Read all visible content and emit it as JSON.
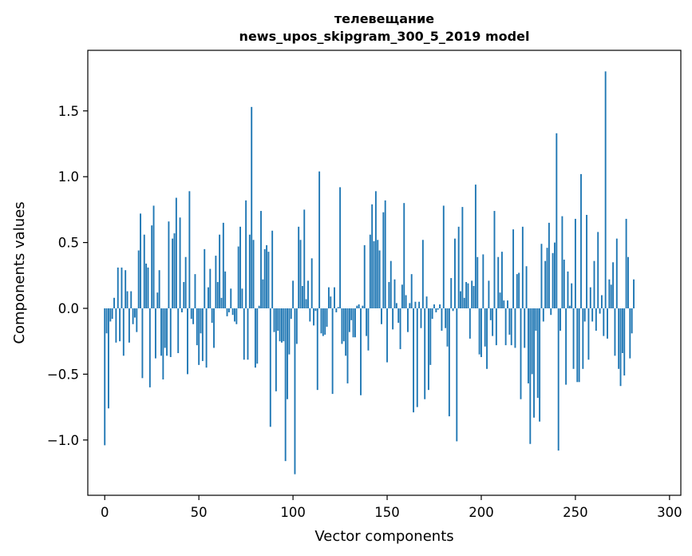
{
  "chart_data": {
    "type": "bar",
    "title": "телевещание",
    "subtitle": "news_upos_skipgram_300_5_2019 model",
    "xlabel": "Vector components",
    "ylabel": "Components values",
    "xlim": [
      -9,
      306
    ],
    "ylim": [
      -1.42,
      1.96
    ],
    "x_ticks": [
      0,
      50,
      100,
      150,
      200,
      250,
      300
    ],
    "x_tick_labels": [
      "0",
      "50",
      "100",
      "150",
      "200",
      "250",
      "300"
    ],
    "y_ticks": [
      -1.0,
      -0.5,
      0.0,
      0.5,
      1.0,
      1.5
    ],
    "y_tick_labels": [
      "−1.0",
      "−0.5",
      "0.0",
      "0.5",
      "1.0",
      "1.5"
    ],
    "grid": false,
    "bar_color": "#1f77b4",
    "values": [
      -1.04,
      -0.19,
      -0.76,
      -0.1,
      -0.08,
      0.08,
      -0.26,
      0.31,
      -0.25,
      0.31,
      -0.36,
      0.29,
      0.13,
      -0.26,
      0.13,
      -0.12,
      -0.07,
      -0.18,
      0.44,
      0.72,
      -0.53,
      0.56,
      0.34,
      0.31,
      -0.6,
      0.63,
      0.78,
      -0.38,
      0.12,
      0.29,
      -0.36,
      -0.54,
      -0.3,
      -0.36,
      0.66,
      -0.37,
      0.53,
      0.57,
      0.84,
      -0.34,
      0.69,
      -0.03,
      0.2,
      0.39,
      -0.5,
      0.89,
      -0.08,
      -0.12,
      0.26,
      -0.28,
      -0.43,
      -0.19,
      -0.4,
      0.45,
      -0.45,
      0.16,
      0.3,
      -0.11,
      -0.3,
      0.4,
      0.2,
      0.56,
      0.08,
      0.65,
      0.28,
      -0.06,
      -0.03,
      0.15,
      -0.05,
      -0.1,
      -0.12,
      0.47,
      0.62,
      0.15,
      -0.39,
      0.82,
      -0.39,
      0.56,
      1.53,
      0.52,
      -0.45,
      -0.42,
      0.02,
      0.74,
      0.22,
      0.45,
      0.48,
      0.43,
      -0.9,
      0.59,
      -0.18,
      -0.63,
      -0.17,
      -0.25,
      -0.26,
      -0.25,
      -1.16,
      -0.69,
      -0.35,
      -0.08,
      0.21,
      -1.26,
      -0.27,
      0.62,
      0.52,
      0.17,
      0.75,
      0.07,
      0.21,
      -0.1,
      0.38,
      -0.13,
      -0.02,
      -0.62,
      1.04,
      -0.19,
      -0.21,
      -0.2,
      -0.14,
      0.16,
      0.09,
      -0.65,
      0.16,
      -0.03,
      0.01,
      0.92,
      -0.27,
      -0.25,
      -0.36,
      -0.57,
      -0.18,
      -0.09,
      -0.22,
      -0.22,
      0.02,
      0.03,
      -0.66,
      0.02,
      0.48,
      -0.21,
      -0.32,
      0.56,
      0.79,
      0.51,
      0.89,
      0.52,
      0.44,
      -0.12,
      0.73,
      0.82,
      -0.41,
      0.2,
      0.36,
      -0.16,
      0.22,
      0.04,
      -0.11,
      -0.31,
      0.18,
      0.8,
      0.1,
      -0.18,
      0.04,
      0.26,
      -0.79,
      0.05,
      -0.75,
      0.05,
      -0.15,
      0.52,
      -0.69,
      0.09,
      -0.62,
      -0.43,
      -0.08,
      0.03,
      -0.03,
      -0.01,
      0.03,
      -0.17,
      0.78,
      -0.15,
      -0.29,
      -0.82,
      0.23,
      -0.02,
      0.53,
      -1.01,
      0.62,
      0.13,
      0.77,
      0.08,
      0.2,
      0.19,
      -0.23,
      0.21,
      0.17,
      0.94,
      0.39,
      -0.35,
      -0.37,
      0.41,
      -0.29,
      -0.46,
      0.21,
      -0.09,
      -0.21,
      0.74,
      -0.28,
      0.39,
      0.12,
      0.43,
      0.06,
      -0.28,
      0.06,
      -0.2,
      -0.28,
      0.6,
      -0.3,
      0.26,
      0.27,
      -0.69,
      0.62,
      -0.3,
      0.32,
      -0.57,
      -1.03,
      -0.5,
      -0.83,
      -0.17,
      -0.68,
      -0.86,
      0.49,
      -0.1,
      0.36,
      0.46,
      0.65,
      -0.05,
      0.42,
      0.5,
      1.33,
      -1.08,
      -0.17,
      0.7,
      0.37,
      -0.58,
      0.28,
      0.02,
      0.19,
      -0.46,
      0.68,
      -0.56,
      -0.56,
      1.02,
      -0.46,
      -0.1,
      0.71,
      -0.39,
      0.16,
      -0.1,
      0.36,
      -0.17,
      0.58,
      -0.04,
      0.1,
      -0.21,
      1.8,
      -0.23,
      0.22,
      0.18,
      0.35,
      -0.36,
      0.53,
      -0.46,
      -0.59,
      -0.34,
      -0.51,
      0.68,
      0.39,
      -0.38,
      -0.19,
      0.22
    ]
  }
}
